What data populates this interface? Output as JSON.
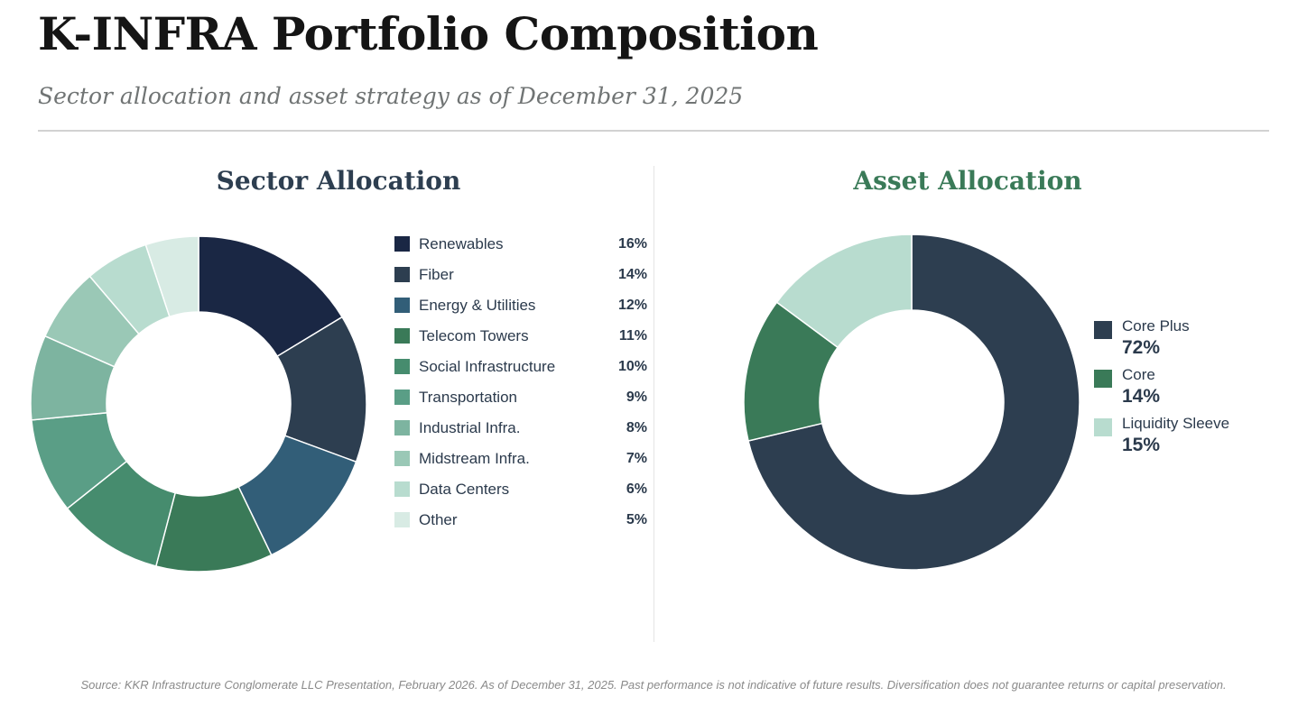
{
  "header": {
    "title": "K-INFRA Portfolio Composition",
    "subtitle": "Sector allocation and asset strategy as of December 31, 2025"
  },
  "chart_data": [
    {
      "type": "pie",
      "title": "Sector Allocation",
      "variant": "donut",
      "start_angle": "12 o'clock, clockwise",
      "legend_position": "right",
      "categories": [
        "Renewables",
        "Fiber",
        "Energy & Utilities",
        "Telecom Towers",
        "Social Infrastructure",
        "Transportation",
        "Industrial Infra.",
        "Midstream Infra.",
        "Data Centers",
        "Other"
      ],
      "values": [
        16,
        14,
        12,
        11,
        10,
        9,
        8,
        7,
        6,
        5
      ],
      "labels": [
        "16%",
        "14%",
        "12%",
        "11%",
        "10%",
        "9%",
        "8%",
        "7%",
        "6%",
        "5%"
      ],
      "colors": [
        "#1a2744",
        "#2d3e50",
        "#325e78",
        "#3a7a58",
        "#468c6e",
        "#5a9e86",
        "#7db4a0",
        "#9ac8b6",
        "#b8dccf",
        "#d8ebe4"
      ]
    },
    {
      "type": "pie",
      "title": "Asset Allocation",
      "variant": "donut",
      "start_angle": "12 o'clock, clockwise",
      "legend_position": "right",
      "categories": [
        "Core Plus",
        "Core",
        "Liquidity Sleeve"
      ],
      "values": [
        72,
        14,
        15
      ],
      "labels": [
        "72%",
        "14%",
        "15%"
      ],
      "colors": [
        "#2d3e50",
        "#3a7a58",
        "#b8dccf"
      ]
    }
  ],
  "footer": {
    "source": "Source: KKR Infrastructure Conglomerate LLC Presentation, February 2026. As of December 31, 2025. Past performance is not indicative of future results. Diversification does not guarantee returns or capital preservation."
  }
}
